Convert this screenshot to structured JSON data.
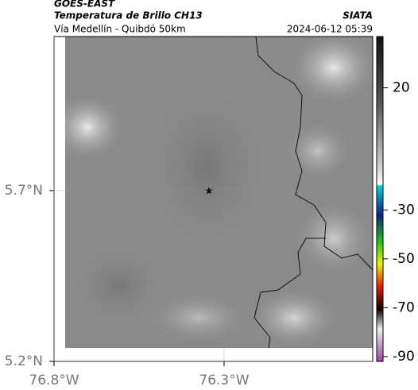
{
  "header": {
    "source": "GOES-EAST",
    "title": "Temperatura de Brillo CH13",
    "brand": "SIATA",
    "subtitle": "Vía Medellín - Quibdó 50km",
    "timestamp": "2024-06-12 05:39"
  },
  "map": {
    "xlim": [
      -76.8,
      -75.863
    ],
    "ylim": [
      5.2,
      6.151
    ],
    "xticks": [
      {
        "value": -76.8,
        "label": "76.8°W"
      },
      {
        "value": -76.3,
        "label": "76.3°W"
      }
    ],
    "yticks": [
      {
        "value": 5.7,
        "label": "5.7°N"
      },
      {
        "value": 5.2,
        "label": "5.2°N"
      }
    ]
  },
  "colorbar": {
    "lim": [
      -92,
      41
    ],
    "ticks": [
      20,
      -30,
      -50,
      -70,
      -90
    ]
  }
}
